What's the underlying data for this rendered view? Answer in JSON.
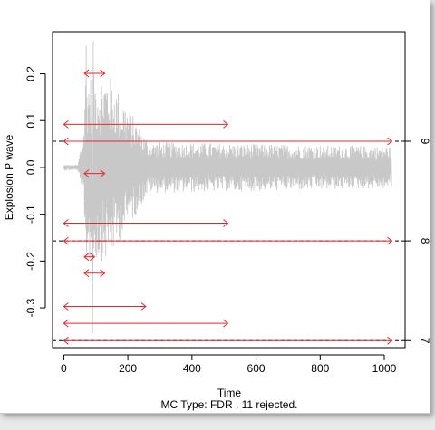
{
  "chart_data": {
    "type": "line",
    "xlabel": "Time",
    "ylabel": "Explosion P wave",
    "subtitle": "MC Type:  FDR .  11  rejected.",
    "xlim": [
      -35,
      1065
    ],
    "ylim": [
      -0.385,
      0.29
    ],
    "x_ticks": [
      0,
      200,
      400,
      600,
      800,
      1000
    ],
    "x_tick_labels": [
      "0",
      "200",
      "400",
      "600",
      "800",
      "1000"
    ],
    "y_ticks": [
      -0.3,
      -0.2,
      -0.1,
      0.0,
      0.1,
      0.2
    ],
    "y_tick_labels": [
      "-0.3",
      "-0.2",
      "-0.1",
      "0.0",
      "0.1",
      "0.2"
    ],
    "series_color": "#c8c8c8",
    "interval_color": "#e8262a",
    "levels": [
      {
        "label": "9",
        "y": 0.056,
        "x": [
          0,
          1024
        ]
      },
      {
        "label": "8",
        "y": -0.157,
        "x": [
          0,
          1024
        ]
      },
      {
        "label": "7",
        "y": -0.37,
        "x": [
          0,
          1024
        ]
      }
    ],
    "intervals": [
      {
        "y": 0.201,
        "x": [
          64,
          128
        ]
      },
      {
        "y": 0.092,
        "x": [
          0,
          512
        ]
      },
      {
        "y": -0.013,
        "x": [
          64,
          128
        ]
      },
      {
        "y": -0.119,
        "x": [
          0,
          512
        ]
      },
      {
        "y": -0.191,
        "x": [
          64,
          96
        ]
      },
      {
        "y": -0.226,
        "x": [
          64,
          128
        ]
      },
      {
        "y": -0.297,
        "x": [
          0,
          256
        ]
      },
      {
        "y": -0.333,
        "x": [
          0,
          512
        ]
      }
    ],
    "grid": false,
    "legend": "none"
  }
}
